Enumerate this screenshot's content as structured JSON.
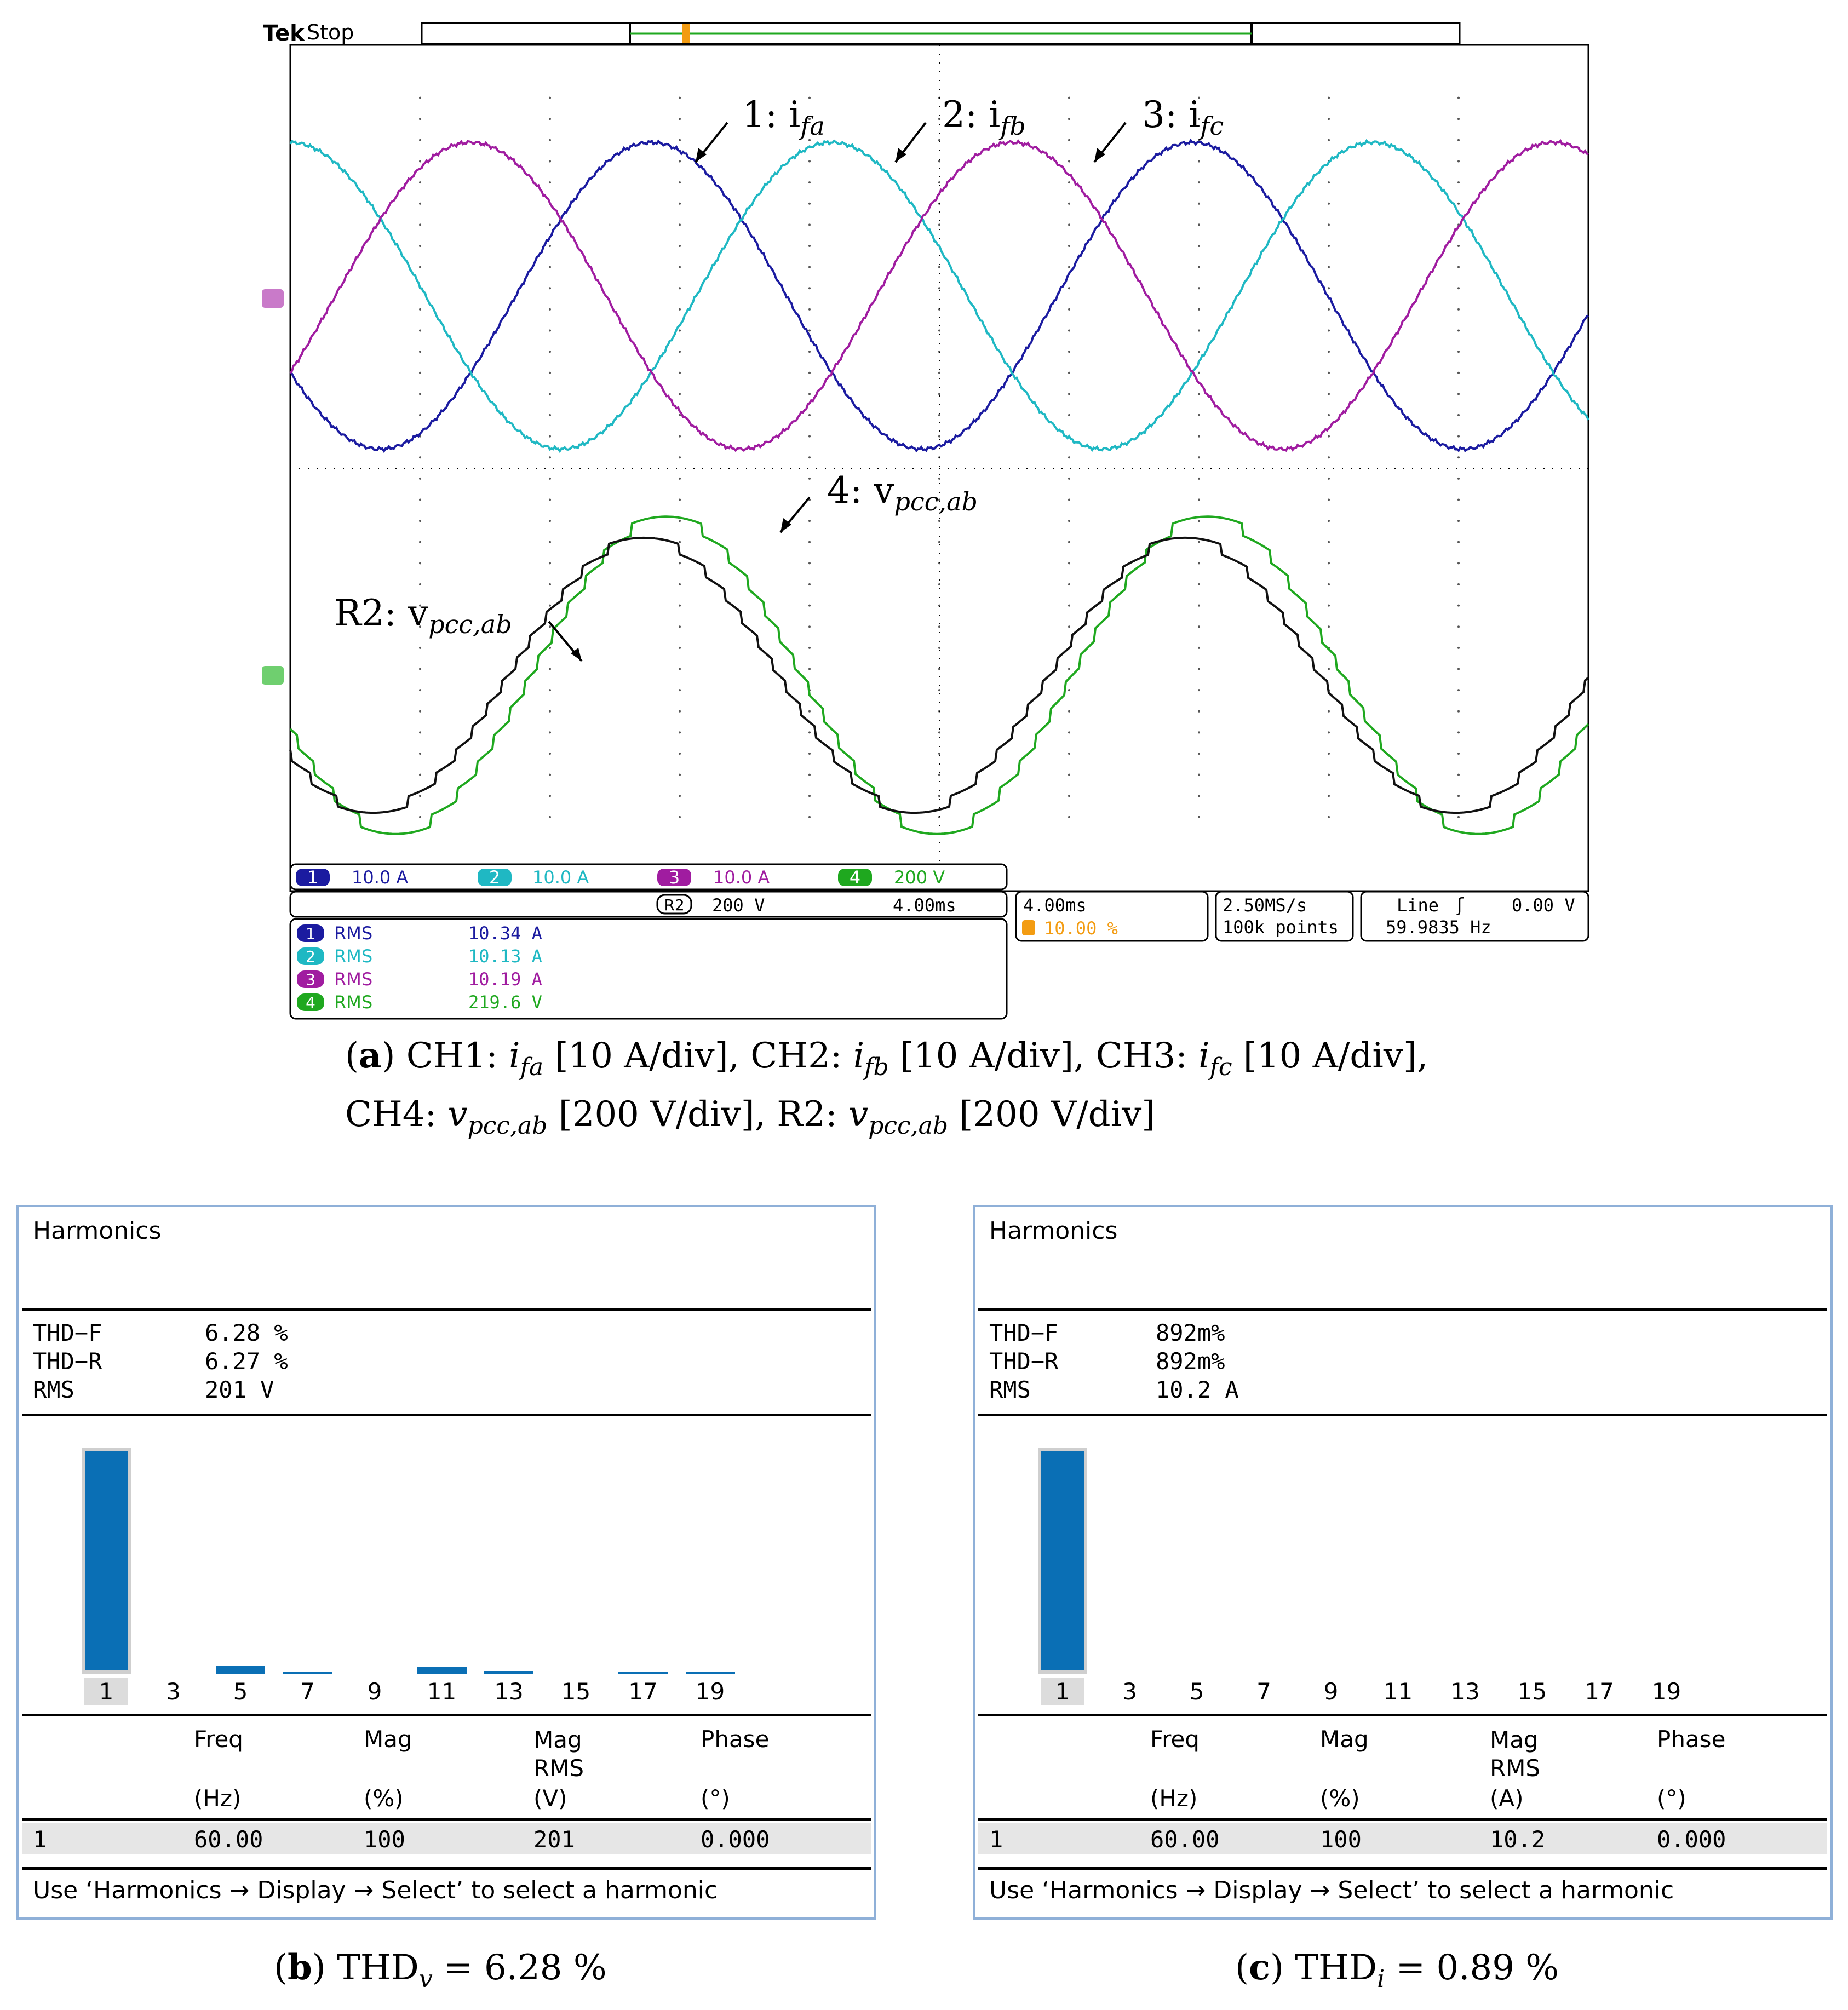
{
  "chart_data": [
    {
      "type": "line",
      "title": "",
      "scope": {
        "brand": "Tek",
        "status": "Stop",
        "trigger_marker": "T",
        "channels": [
          {
            "id": "1",
            "scale": "10.0 A",
            "color": "#1b1ba0",
            "rms_label": "RMS",
            "rms": "10.34 A"
          },
          {
            "id": "2",
            "scale": "10.0 A",
            "color": "#1fb8c3",
            "rms_label": "RMS",
            "rms": "10.13 A"
          },
          {
            "id": "3",
            "scale": "10.0 A",
            "color": "#a01ca0",
            "rms_label": "RMS",
            "rms": "10.19 A"
          },
          {
            "id": "4",
            "scale": "200 V",
            "color": "#1fa81f",
            "rms_label": "RMS",
            "rms": "219.6 V"
          }
        ],
        "ref": {
          "id": "R2",
          "scale": "200 V",
          "time": "4.00ms"
        },
        "timebase": "4.00ms",
        "trigger_pos": "10.00 %",
        "sample_rate": "2.50MS/s",
        "record_length": "100k points",
        "trigger_source": "Line",
        "trigger_symbol": "ʃ",
        "trigger_level": "0.00 V",
        "frequency": "59.9835 Hz",
        "annotations": {
          "ch1": "1: i",
          "ch1_sub": "fa",
          "ch2": "2: i",
          "ch2_sub": "fb",
          "ch3": "3: i",
          "ch3_sub": "fc",
          "ch4": "4: v",
          "ch4_sub": "pcc,ab",
          "r2": "R2: v",
          "r2_sub": "pcc,ab"
        },
        "period_divisions": 4.17,
        "series": [
          {
            "name": "1: i_fa",
            "amplitude_div": 1.45,
            "phase_deg": 210
          },
          {
            "name": "2: i_fb",
            "amplitude_div": 1.45,
            "phase_deg": 90
          },
          {
            "name": "3: i_fc",
            "amplitude_div": 1.45,
            "phase_deg": 330
          },
          {
            "name": "4: v_pcc,ab",
            "amplitude_div": 1.5,
            "phase_deg": 200
          },
          {
            "name": "R2: v_pcc,ab",
            "amplitude_div": 1.3,
            "phase_deg": 215
          }
        ]
      },
      "caption": {
        "label": "a",
        "line1": [
          {
            "t": "CH1: "
          },
          {
            "t": "i",
            "i": true
          },
          {
            "t": "fa",
            "sub": true
          },
          {
            "t": " [10 A/div], CH2: "
          },
          {
            "t": "i",
            "i": true
          },
          {
            "t": "fb",
            "sub": true
          },
          {
            "t": " [10 A/div], CH3: "
          },
          {
            "t": "i",
            "i": true
          },
          {
            "t": "fc",
            "sub": true
          },
          {
            "t": " [10 A/div],"
          }
        ],
        "line2": [
          {
            "t": "CH4: "
          },
          {
            "t": "v",
            "i": true
          },
          {
            "t": "pcc,ab",
            "sub": true
          },
          {
            "t": " [200 V/div], R2: "
          },
          {
            "t": "v",
            "i": true
          },
          {
            "t": "pcc,ab",
            "sub": true
          },
          {
            "t": " [200 V/div]"
          }
        ]
      }
    },
    {
      "type": "bar",
      "title": "Harmonics",
      "stats": [
        {
          "label": "THD−F",
          "value": "6.28 %"
        },
        {
          "label": "THD−R",
          "value": "6.27 %"
        },
        {
          "label": "RMS",
          "value": "201 V"
        }
      ],
      "categories": [
        "1",
        "3",
        "5",
        "7",
        "9",
        "11",
        "13",
        "15",
        "17",
        "19"
      ],
      "values": [
        100,
        0,
        3.5,
        0.6,
        0,
        2.8,
        1.2,
        0,
        0.6,
        0.5
      ],
      "ylim": [
        0,
        100
      ],
      "table": {
        "headers": [
          [
            "Freq",
            "(Hz)"
          ],
          [
            "Mag",
            "(%)"
          ],
          [
            "Mag RMS",
            "(V)"
          ],
          [
            "Phase",
            "(°)"
          ]
        ],
        "row": [
          "1",
          "60.00",
          "100",
          "201",
          "0.000"
        ]
      },
      "footer": "Use ‘Harmonics → Display → Select’ to select a harmonic",
      "caption": {
        "label": "b",
        "text": "THD",
        "sub": "v",
        "rest": " = 6.28 %"
      }
    },
    {
      "type": "bar",
      "title": "Harmonics",
      "stats": [
        {
          "label": "THD−F",
          "value": "892m%"
        },
        {
          "label": "THD−R",
          "value": "892m%"
        },
        {
          "label": "RMS",
          "value": "10.2 A"
        }
      ],
      "categories": [
        "1",
        "3",
        "5",
        "7",
        "9",
        "11",
        "13",
        "15",
        "17",
        "19"
      ],
      "values": [
        100,
        0,
        0,
        0,
        0,
        0,
        0,
        0,
        0,
        0
      ],
      "ylim": [
        0,
        100
      ],
      "table": {
        "headers": [
          [
            "Freq",
            "(Hz)"
          ],
          [
            "Mag",
            "(%)"
          ],
          [
            "Mag RMS",
            "(A)"
          ],
          [
            "Phase",
            "(°)"
          ]
        ],
        "row": [
          "1",
          "60.00",
          "100",
          "10.2",
          "0.000"
        ]
      },
      "footer": "Use ‘Harmonics → Display → Select’ to select a harmonic",
      "caption": {
        "label": "c",
        "text": "THD",
        "sub": "i",
        "rest": " = 0.89 %"
      }
    }
  ]
}
